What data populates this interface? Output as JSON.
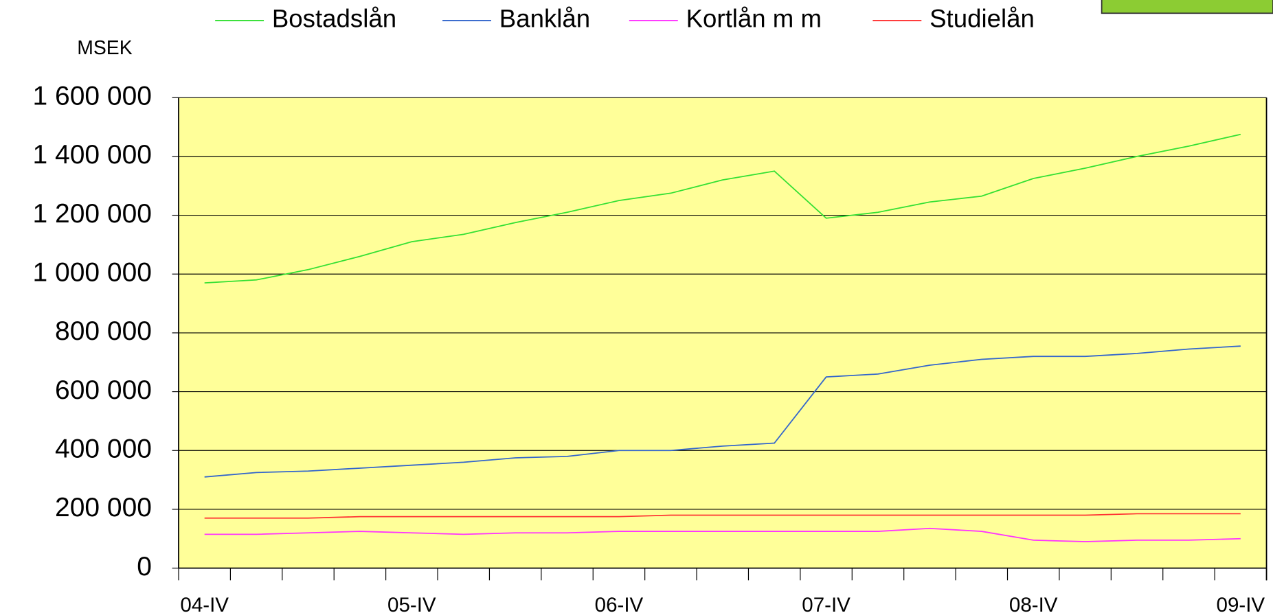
{
  "chart_data": {
    "type": "line",
    "y_label": "MSEK",
    "categories": [
      "04-IV",
      null,
      null,
      null,
      "05-IV",
      null,
      null,
      null,
      "06-IV",
      null,
      null,
      null,
      "07-IV",
      null,
      null,
      null,
      "08-IV",
      null,
      null,
      null,
      "09-IV"
    ],
    "series": [
      {
        "name": "Bostadslån",
        "color": "#33e033",
        "values": [
          970000,
          980000,
          1015000,
          1060000,
          1110000,
          1135000,
          1175000,
          1210000,
          1250000,
          1275000,
          1320000,
          1350000,
          1190000,
          1210000,
          1245000,
          1265000,
          1325000,
          1360000,
          1400000,
          1435000,
          1475000
        ]
      },
      {
        "name": "Banklån",
        "color": "#3366cc",
        "values": [
          310000,
          325000,
          330000,
          340000,
          350000,
          360000,
          375000,
          380000,
          400000,
          400000,
          415000,
          425000,
          650000,
          660000,
          690000,
          710000,
          720000,
          720000,
          730000,
          745000,
          755000
        ]
      },
      {
        "name": "Kortlån m m",
        "color": "#ff33ff",
        "values": [
          115000,
          115000,
          120000,
          125000,
          120000,
          115000,
          120000,
          120000,
          125000,
          125000,
          125000,
          125000,
          125000,
          125000,
          135000,
          125000,
          95000,
          90000,
          95000,
          95000,
          100000
        ]
      },
      {
        "name": "Studielån",
        "color": "#ff3333",
        "values": [
          170000,
          170000,
          170000,
          175000,
          175000,
          175000,
          175000,
          175000,
          175000,
          180000,
          180000,
          180000,
          180000,
          180000,
          180000,
          180000,
          180000,
          180000,
          185000,
          185000,
          185000
        ]
      }
    ],
    "ylim": [
      0,
      1600000
    ],
    "yticks": [
      0,
      {
        "value": 200000,
        "label": "200 000"
      },
      {
        "value": 400000,
        "label": "400 000"
      },
      {
        "value": 600000,
        "label": "600 000"
      },
      {
        "value": 800000,
        "label": "800 000"
      },
      {
        "value": 1000000,
        "label": "1 000 000"
      },
      {
        "value": 1200000,
        "label": "1 200 000"
      },
      {
        "value": 1400000,
        "label": "1 400 000"
      },
      {
        "value": 1600000,
        "label": "1 600 000"
      }
    ],
    "grid": true,
    "legend": "top"
  }
}
